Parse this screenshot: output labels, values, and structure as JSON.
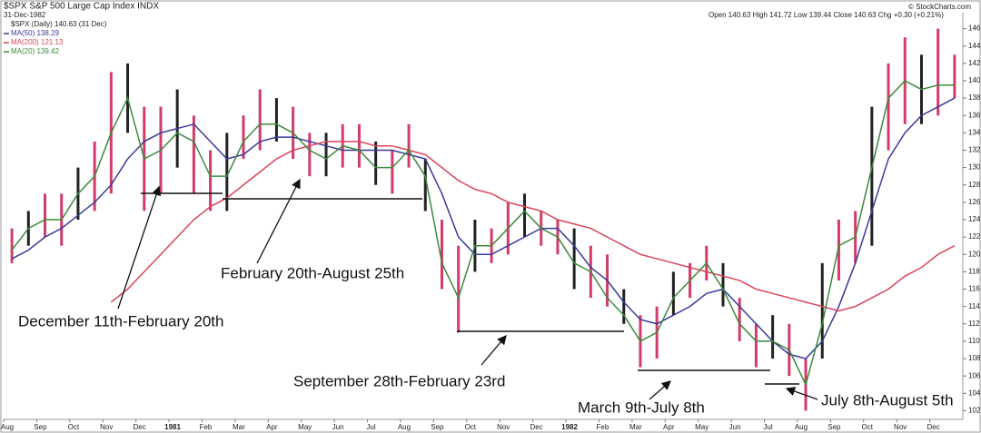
{
  "chart_data": {
    "type": "ohlc",
    "title": "$SPX S&P 500 Large Cap Index INDX",
    "date": "31-Dec-1982",
    "quote": "Open 140.63 High 141.72 Low 139.44 Close 140.63 Chg +0.30 (+0.21%)",
    "credit": "© StockCharts.com",
    "categories": [
      "Aug",
      null,
      "Sep",
      null,
      "Oct",
      null,
      "Nov",
      null,
      "Dec",
      null,
      "1981",
      null,
      "Feb",
      null,
      "Mar",
      null,
      "Apr",
      null,
      "May",
      null,
      "Jun",
      null,
      "Jul",
      null,
      "Aug",
      null,
      "Sep",
      null,
      "Oct",
      null,
      "Nov",
      null,
      "Dec",
      null,
      "1982",
      null,
      "Feb",
      null,
      "Mar",
      null,
      "Apr",
      null,
      "May",
      null,
      "Jun",
      null,
      "Jul",
      null,
      "Aug",
      null,
      "Sep",
      null,
      "Oct",
      null,
      "Nov",
      null,
      "Dec",
      null
    ],
    "series": [
      {
        "name": "$SPX (Daily) 140.63 (31 Dec)",
        "color": "#d23c69",
        "high": [
          123,
          125,
          127,
          127,
          130,
          133,
          141,
          142,
          137,
          137,
          139,
          136,
          132,
          134,
          136,
          139,
          138,
          137,
          134,
          134,
          135,
          135,
          133,
          132,
          135,
          131,
          124,
          121,
          124,
          123,
          126,
          127,
          125,
          124,
          123,
          121,
          120,
          116,
          113,
          114,
          118,
          119,
          121,
          119,
          115,
          112,
          113,
          112,
          108,
          119,
          124,
          125,
          137,
          142,
          145,
          143,
          146,
          143
        ],
        "low": [
          119,
          121,
          122,
          121,
          124,
          125,
          127,
          134,
          125,
          127,
          130,
          127,
          125,
          125,
          131,
          132,
          133,
          131,
          129,
          129,
          130,
          130,
          128,
          127,
          130,
          125,
          116,
          111,
          118,
          119,
          120,
          122,
          121,
          120,
          116,
          115,
          114,
          112,
          107,
          108,
          113,
          115,
          117,
          114,
          110,
          107,
          108,
          106,
          102,
          108,
          117,
          119,
          121,
          132,
          135,
          135,
          136,
          138
        ]
      },
      {
        "name": "MA(50) 138.29",
        "color": "#3a3a9a",
        "values": [
          119.5,
          120.5,
          122,
          123,
          124.5,
          126,
          128,
          131,
          133,
          134,
          134.5,
          135,
          133,
          131,
          131.5,
          133,
          133.5,
          133.5,
          133,
          132.5,
          132,
          132,
          132,
          132,
          131.5,
          131,
          127,
          122,
          120,
          120,
          121,
          122,
          123,
          123,
          121,
          118.5,
          117,
          114.5,
          112.5,
          112,
          113,
          114,
          115.5,
          116,
          114,
          112,
          110,
          108.5,
          108,
          110,
          114,
          119,
          125,
          131,
          134,
          136,
          137,
          138
        ]
      },
      {
        "name": "MA(200) 121.13",
        "color": "#d9455a",
        "values": [
          null,
          null,
          null,
          null,
          null,
          null,
          114.5,
          116,
          118,
          120,
          122,
          124,
          125.5,
          126.5,
          128,
          129.5,
          131,
          132,
          132.5,
          133,
          133,
          133,
          132.5,
          132.5,
          132,
          131.5,
          130,
          128.5,
          127.5,
          127,
          126,
          125.5,
          125,
          124,
          123.5,
          123,
          122,
          121,
          120,
          119.5,
          119,
          118.5,
          118,
          117.5,
          117,
          116,
          115.5,
          115,
          114.5,
          114,
          113.5,
          114,
          115,
          116,
          117.5,
          118.5,
          120,
          121
        ]
      },
      {
        "name": "MA(20) 139.42",
        "color": "#3c8a3c",
        "values": [
          120.5,
          123,
          124,
          124,
          127,
          129,
          134,
          138,
          131,
          132,
          134,
          133,
          129,
          129,
          133,
          135,
          135,
          134,
          132,
          131,
          132.5,
          132,
          130,
          130,
          132,
          129,
          119,
          115,
          121,
          121,
          123,
          125,
          123,
          122,
          119,
          118,
          115,
          113,
          110,
          111,
          115,
          117,
          119,
          116,
          112,
          110,
          110,
          109,
          105,
          112,
          121,
          122,
          130,
          138,
          140,
          139,
          139.5,
          139.5
        ]
      }
    ],
    "ylim": [
      101,
      147
    ],
    "yticks": [
      102,
      104,
      106,
      108,
      110,
      112,
      114,
      116,
      118,
      120,
      122,
      124,
      126,
      128,
      130,
      132,
      134,
      136,
      138,
      140,
      142,
      144,
      146
    ],
    "annotations": [
      "December 11th-February 20th",
      "February 20th-August 25th",
      "September 28th-February 23rd",
      "March 9th-July 8th",
      "July 8th-August 5th"
    ]
  }
}
